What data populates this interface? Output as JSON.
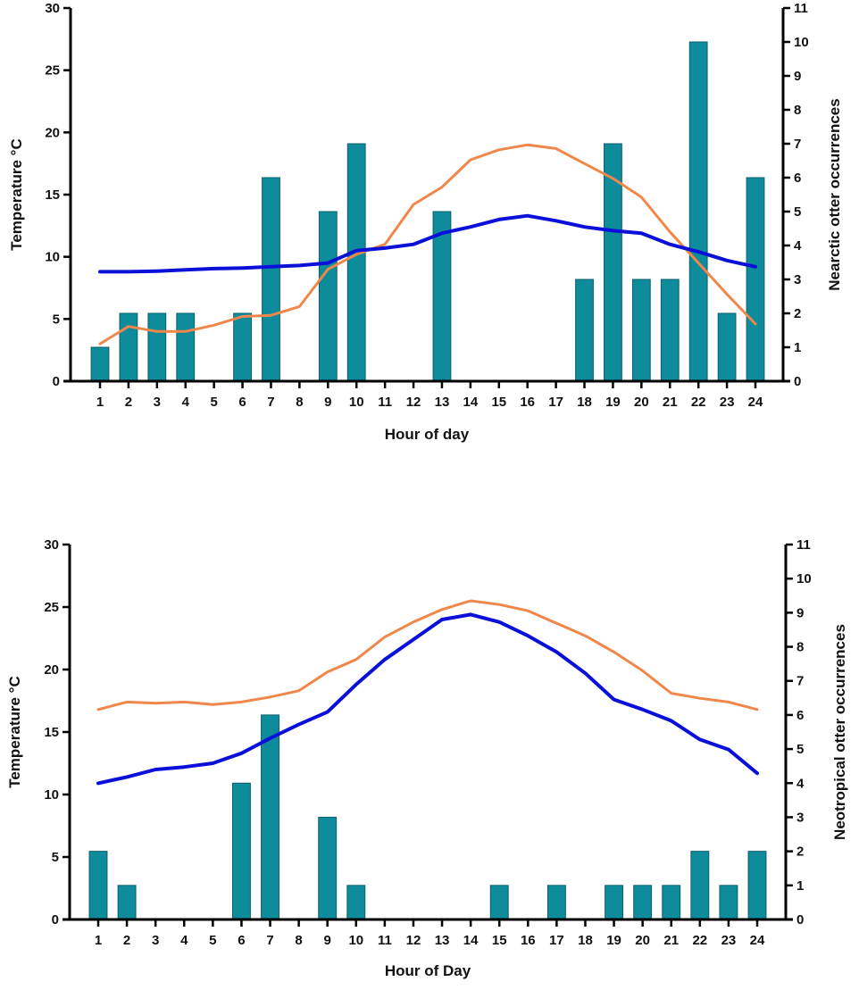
{
  "chart_data": [
    {
      "type": "bar",
      "id": "nearctic",
      "title": "",
      "xlabel": "Hour of day",
      "ylabel": "Temperature °C",
      "y2label": "Nearctic otter occurrences",
      "categories": [
        "1",
        "2",
        "3",
        "4",
        "5",
        "6",
        "7",
        "8",
        "9",
        "10",
        "11",
        "12",
        "13",
        "14",
        "15",
        "16",
        "17",
        "18",
        "19",
        "20",
        "21",
        "22",
        "23",
        "24"
      ],
      "ylim": [
        0,
        30
      ],
      "yticks": [
        0,
        5,
        10,
        15,
        20,
        25,
        30
      ],
      "y2lim": [
        0,
        11
      ],
      "y2ticks": [
        0,
        1,
        2,
        3,
        4,
        5,
        6,
        7,
        8,
        9,
        10,
        11
      ],
      "grid": false,
      "legend": "none",
      "series": [
        {
          "name": "Otter occurrences",
          "kind": "bar",
          "axis": "right",
          "color": "#0e8c9c",
          "values": [
            1,
            2,
            2,
            2,
            0,
            2,
            6,
            0,
            5,
            7,
            0,
            0,
            5,
            0,
            0,
            0,
            0,
            3,
            7,
            3,
            3,
            10,
            2,
            6
          ]
        },
        {
          "name": "Temperature (orange)",
          "kind": "line",
          "axis": "left",
          "color": "#f0874a",
          "values": [
            3.0,
            4.4,
            4.0,
            4.0,
            4.5,
            5.2,
            5.3,
            6.0,
            9.0,
            10.2,
            11.0,
            14.2,
            15.6,
            17.8,
            18.6,
            19.0,
            18.7,
            17.5,
            16.3,
            14.8,
            12.0,
            9.5,
            7.0,
            4.6
          ]
        },
        {
          "name": "Temperature (blue)",
          "kind": "line",
          "axis": "left",
          "color": "#0a10d8",
          "values": [
            8.8,
            8.8,
            8.85,
            8.95,
            9.05,
            9.1,
            9.2,
            9.3,
            9.5,
            10.5,
            10.7,
            11.0,
            11.9,
            12.4,
            13.0,
            13.3,
            12.9,
            12.4,
            12.1,
            11.9,
            11.0,
            10.4,
            9.7,
            9.2
          ]
        }
      ]
    },
    {
      "type": "bar",
      "id": "neotropical",
      "title": "",
      "xlabel": "Hour of Day",
      "ylabel": "Temperature °C",
      "y2label": "Neotropical otter occurrences",
      "categories": [
        "1",
        "2",
        "3",
        "4",
        "5",
        "6",
        "7",
        "8",
        "9",
        "10",
        "11",
        "12",
        "13",
        "14",
        "15",
        "16",
        "17",
        "18",
        "19",
        "20",
        "21",
        "22",
        "23",
        "24"
      ],
      "ylim": [
        0,
        30
      ],
      "yticks": [
        0,
        5,
        10,
        15,
        20,
        25,
        30
      ],
      "y2lim": [
        0,
        11
      ],
      "y2ticks": [
        0,
        1,
        2,
        3,
        4,
        5,
        6,
        7,
        8,
        9,
        10,
        11
      ],
      "grid": false,
      "legend": "none",
      "series": [
        {
          "name": "Otter occurrences",
          "kind": "bar",
          "axis": "right",
          "color": "#0e8c9c",
          "values": [
            2,
            1,
            0,
            0,
            0,
            4,
            6,
            0,
            3,
            1,
            0,
            0,
            0,
            0,
            1,
            0,
            1,
            0,
            1,
            1,
            1,
            2,
            1,
            2
          ]
        },
        {
          "name": "Temperature (orange)",
          "kind": "line",
          "axis": "left",
          "color": "#f0874a",
          "values": [
            16.8,
            17.4,
            17.3,
            17.4,
            17.2,
            17.4,
            17.8,
            18.3,
            19.8,
            20.8,
            22.6,
            23.8,
            24.8,
            25.5,
            25.2,
            24.7,
            23.7,
            22.7,
            21.4,
            19.9,
            18.1,
            17.7,
            17.4,
            16.8
          ]
        },
        {
          "name": "Temperature (blue)",
          "kind": "line",
          "axis": "left",
          "color": "#0a10d8",
          "values": [
            10.9,
            11.4,
            12.0,
            12.2,
            12.5,
            13.3,
            14.5,
            15.6,
            16.6,
            18.8,
            20.8,
            22.4,
            24.0,
            24.4,
            23.8,
            22.7,
            21.4,
            19.7,
            17.6,
            16.8,
            15.9,
            14.4,
            13.6,
            11.7
          ]
        }
      ]
    }
  ]
}
